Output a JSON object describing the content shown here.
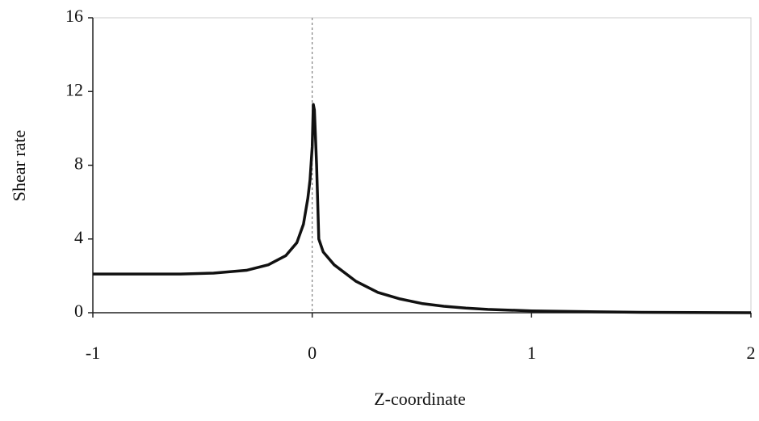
{
  "chart_data": {
    "type": "line",
    "xlabel": "Z-coordinate",
    "ylabel": "Shear rate",
    "x": [
      -1,
      -0.6,
      -0.45,
      -0.3,
      -0.2,
      -0.12,
      -0.07,
      -0.04,
      -0.02,
      -0.01,
      0,
      0.005,
      0.01,
      0.02,
      0.03,
      0.05,
      0.1,
      0.2,
      0.3,
      0.4,
      0.5,
      0.6,
      0.7,
      0.8,
      1.0,
      1.3,
      1.5,
      2
    ],
    "series": [
      {
        "color": "#111111",
        "values": [
          2.1,
          2.1,
          2.15,
          2.3,
          2.6,
          3.1,
          3.8,
          4.8,
          6.2,
          7.2,
          9,
          11.3,
          11,
          8,
          4,
          3.3,
          2.6,
          1.7,
          1.1,
          0.75,
          0.5,
          0.35,
          0.25,
          0.18,
          0.1,
          0.05,
          0.02,
          0
        ]
      }
    ],
    "xlim": [
      -1,
      2
    ],
    "xticks": [
      -1,
      0,
      1,
      2
    ],
    "ylim": [
      0,
      16
    ],
    "yticks": [
      0,
      4,
      8,
      12,
      16
    ],
    "vline": 0,
    "grid": false
  }
}
